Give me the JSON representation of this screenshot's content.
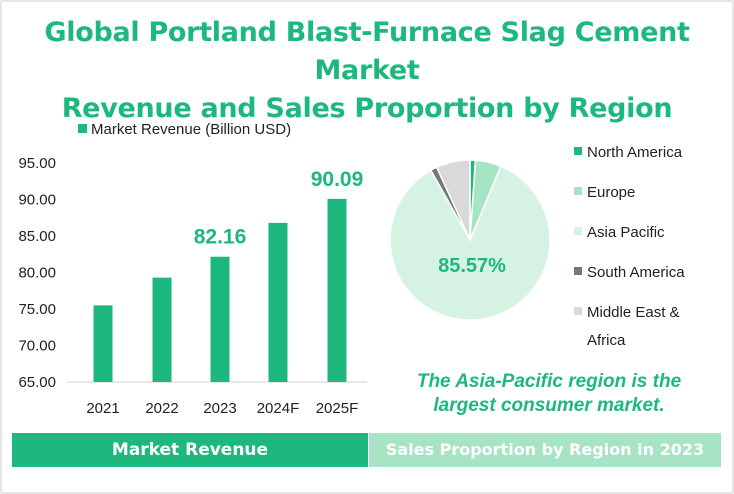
{
  "title_line1": "Global Portland Blast-Furnace Slag Cement Market",
  "title_line2": "Revenue and Sales Proportion by Region",
  "caption_line1": "The Asia-Pacific region is the",
  "caption_line2": "largest consumer market.",
  "footer": {
    "left": "Market Revenue",
    "right": "Sales Proportion by Region in 2023"
  },
  "colors": {
    "accent": "#1db87e",
    "europe": "#a7e3c5",
    "asia_pacific": "#d6f2e3",
    "south_america": "#6e7b78",
    "mea": "#d9d9d9"
  },
  "chart_data": [
    {
      "type": "bar",
      "legend": "Market Revenue (Billion USD)",
      "categories": [
        "2021",
        "2022",
        "2023",
        "2024F",
        "2025F"
      ],
      "series": [
        {
          "name": "Market Revenue (Billion USD)",
          "values": [
            75.5,
            79.3,
            82.16,
            86.8,
            90.09
          ]
        }
      ],
      "data_labels": {
        "2": "82.16",
        "4": "90.09"
      },
      "ylim": [
        65,
        95
      ],
      "yticks": [
        "65.00",
        "70.00",
        "75.00",
        "80.00",
        "85.00",
        "90.00",
        "95.00"
      ],
      "grid": false
    },
    {
      "type": "pie",
      "slices": [
        {
          "name": "North America",
          "value": 1.1,
          "color": "#1db87e"
        },
        {
          "name": "Europe",
          "value": 5.2,
          "color": "#a7e3c5"
        },
        {
          "name": "Asia Pacific",
          "value": 85.57,
          "color": "#d6f2e3"
        },
        {
          "name": "South America",
          "value": 1.3,
          "color": "#6e7b78"
        },
        {
          "name": "Middle East & Africa",
          "value": 6.83,
          "color": "#d9d9d9"
        }
      ],
      "data_label": "85.57%",
      "legend_position": "right",
      "legend_labels": [
        "North America",
        "Europe",
        "Asia Pacific",
        "South America",
        "Middle East &",
        "Africa"
      ]
    }
  ]
}
